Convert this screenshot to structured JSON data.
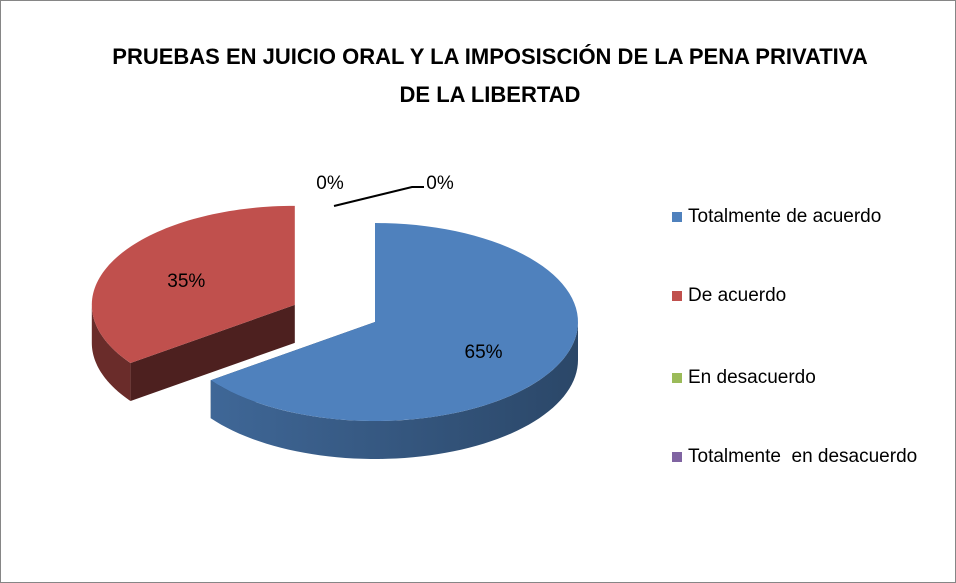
{
  "chart_data": {
    "type": "pie",
    "title": "PRUEBAS EN JUICIO ORAL Y LA IMPOSISCIÓN DE LA PENA PRIVATIVA DE LA LIBERTAD",
    "categories": [
      "Totalmente de acuerdo",
      "De acuerdo",
      "En desacuerdo",
      "Totalmente  en desacuerdo"
    ],
    "values": [
      65,
      35,
      0,
      0
    ],
    "value_labels": [
      "65%",
      "35%",
      "0%",
      "0%"
    ],
    "colors": [
      "#4f81bd",
      "#c0504d",
      "#9bbb59",
      "#8064a2"
    ],
    "legend": "right"
  }
}
